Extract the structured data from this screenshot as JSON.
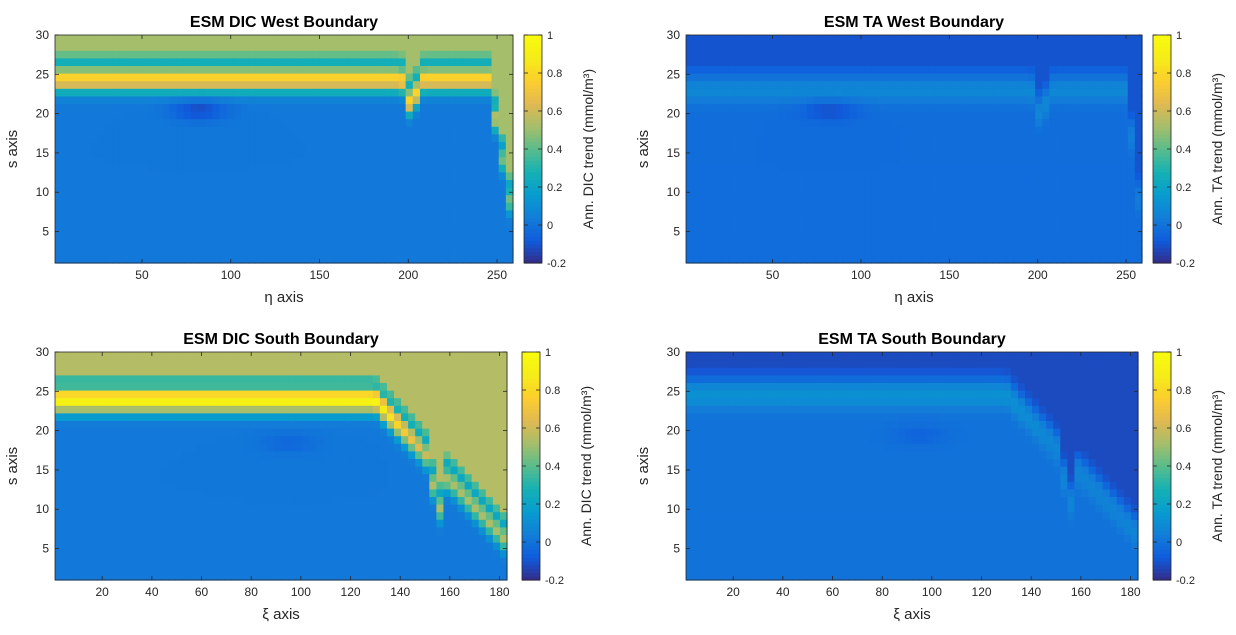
{
  "chart_data": [
    {
      "type": "heatmap",
      "title": "ESM DIC West Boundary",
      "xlabel": "η axis",
      "ylabel": "s axis",
      "xlim": [
        1,
        259
      ],
      "ylim": [
        1,
        30
      ],
      "xticks": [
        50,
        100,
        150,
        200,
        250
      ],
      "yticks": [
        5,
        10,
        15,
        20,
        25,
        30
      ],
      "colorbar": {
        "label": "Ann. DIC trend (mmol/m³)",
        "clim": [
          -0.2,
          1
        ],
        "ticks": [
          -0.2,
          0,
          0.2,
          0.4,
          0.6,
          0.8,
          1
        ]
      },
      "colormap": "parula",
      "approx_field": {
        "base": 0.02,
        "band_center_s": 24.5,
        "band_peak": 0.78,
        "surface_value": 0.52,
        "band_end_x": 245,
        "notch_x": 202,
        "dip_center": [
          82,
          20.5
        ],
        "dip_value": -0.12
      }
    },
    {
      "type": "heatmap",
      "title": "ESM TA West Boundary",
      "xlabel": "η axis",
      "ylabel": "s axis",
      "xlim": [
        1,
        259
      ],
      "ylim": [
        1,
        30
      ],
      "xticks": [
        50,
        100,
        150,
        200,
        250
      ],
      "yticks": [
        5,
        10,
        15,
        20,
        25,
        30
      ],
      "colorbar": {
        "label": "Ann. TA trend (mmol/m³)",
        "clim": [
          -0.2,
          1
        ],
        "ticks": [
          -0.2,
          0,
          0.2,
          0.4,
          0.6,
          0.8,
          1
        ]
      },
      "colormap": "parula",
      "approx_field": {
        "base": -0.02,
        "band_center_s": 23,
        "band_peak": 0.08,
        "surface_value": -0.1,
        "band_end_x": 250,
        "notch_x": 202,
        "dip_center": [
          82,
          20.5
        ],
        "dip_value": -0.12
      }
    },
    {
      "type": "heatmap",
      "title": "ESM DIC South Boundary",
      "xlabel": "ξ axis",
      "ylabel": "s axis",
      "xlim": [
        1,
        183
      ],
      "ylim": [
        1,
        30
      ],
      "xticks": [
        20,
        40,
        60,
        80,
        100,
        120,
        140,
        160,
        180
      ],
      "yticks": [
        5,
        10,
        15,
        20,
        25,
        30
      ],
      "colorbar": {
        "label": "Ann. DIC trend (mmol/m³)",
        "clim": [
          -0.2,
          1
        ],
        "ticks": [
          -0.2,
          0,
          0.2,
          0.4,
          0.6,
          0.8,
          1
        ]
      },
      "colormap": "parula",
      "approx_field": {
        "base": 0.02,
        "band_center_s": 24,
        "band_peak": 0.95,
        "surface_value": 0.55,
        "band_end_x": 130,
        "notch_x": 155,
        "dip_center": [
          95,
          18.5
        ],
        "dip_value": -0.04
      }
    },
    {
      "type": "heatmap",
      "title": "ESM TA South Boundary",
      "xlabel": "ξ axis",
      "ylabel": "s axis",
      "xlim": [
        1,
        183
      ],
      "ylim": [
        1,
        30
      ],
      "xticks": [
        20,
        40,
        60,
        80,
        100,
        120,
        140,
        160,
        180
      ],
      "yticks": [
        5,
        10,
        15,
        20,
        25,
        30
      ],
      "colorbar": {
        "label": "Ann. TA trend (mmol/m³)",
        "clim": [
          -0.2,
          1
        ],
        "ticks": [
          -0.2,
          0,
          0.2,
          0.4,
          0.6,
          0.8,
          1
        ]
      },
      "colormap": "parula",
      "approx_field": {
        "base": 0.0,
        "band_center_s": 24.5,
        "band_peak": 0.12,
        "surface_value": -0.12,
        "band_end_x": 130,
        "notch_x": 155,
        "dip_center": [
          95,
          19.5
        ],
        "dip_value": -0.05
      }
    }
  ]
}
